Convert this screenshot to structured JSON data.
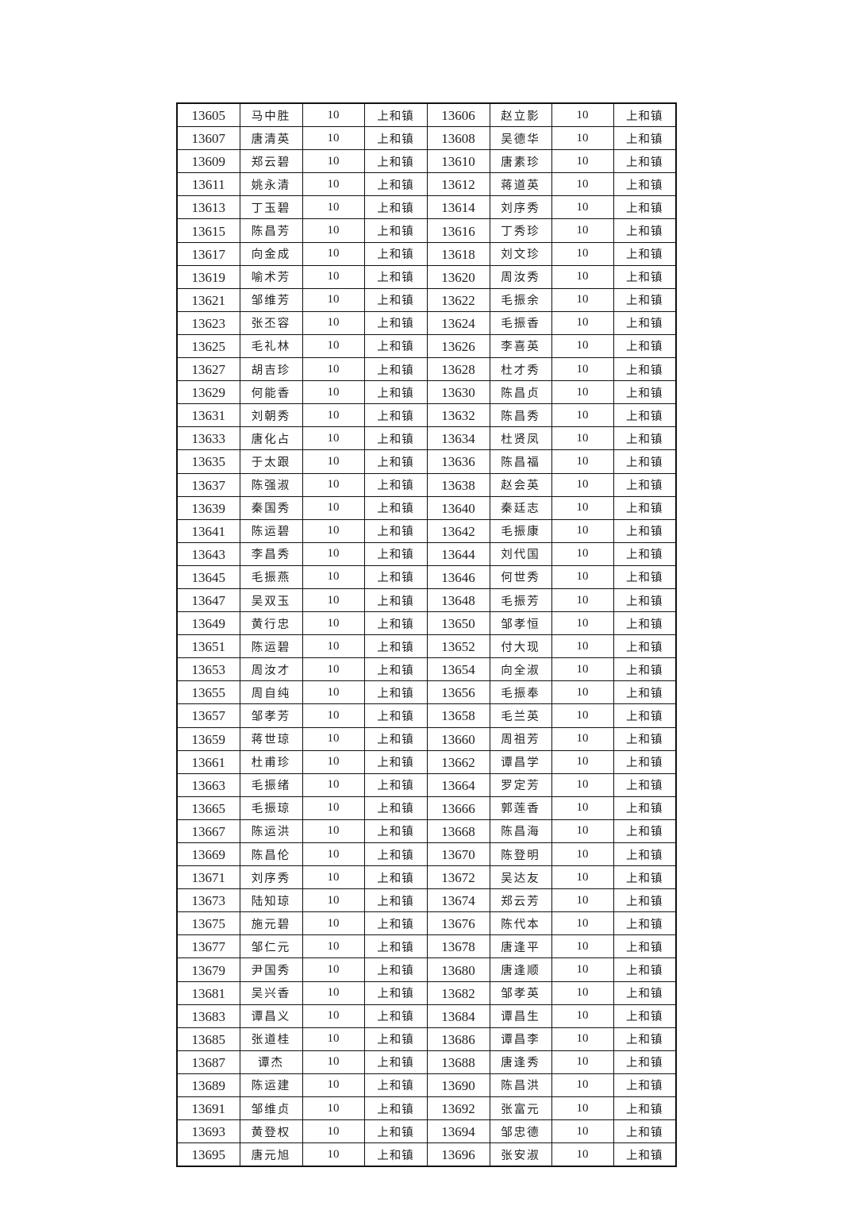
{
  "amount": "10",
  "town": "上和镇",
  "rows": [
    {
      "id1": "13605",
      "n1": "马中胜",
      "id2": "13606",
      "n2": "赵立影"
    },
    {
      "id1": "13607",
      "n1": "唐清英",
      "id2": "13608",
      "n2": "吴德华"
    },
    {
      "id1": "13609",
      "n1": "郑云碧",
      "id2": "13610",
      "n2": "唐素珍"
    },
    {
      "id1": "13611",
      "n1": "姚永清",
      "id2": "13612",
      "n2": "蒋道英"
    },
    {
      "id1": "13613",
      "n1": "丁玉碧",
      "id2": "13614",
      "n2": "刘序秀"
    },
    {
      "id1": "13615",
      "n1": "陈昌芳",
      "id2": "13616",
      "n2": "丁秀珍"
    },
    {
      "id1": "13617",
      "n1": "向金成",
      "id2": "13618",
      "n2": "刘文珍"
    },
    {
      "id1": "13619",
      "n1": "喻术芳",
      "id2": "13620",
      "n2": "周汝秀"
    },
    {
      "id1": "13621",
      "n1": "邹维芳",
      "id2": "13622",
      "n2": "毛振余"
    },
    {
      "id1": "13623",
      "n1": "张丕容",
      "id2": "13624",
      "n2": "毛振香"
    },
    {
      "id1": "13625",
      "n1": "毛礼林",
      "id2": "13626",
      "n2": "李喜英"
    },
    {
      "id1": "13627",
      "n1": "胡吉珍",
      "id2": "13628",
      "n2": "杜才秀"
    },
    {
      "id1": "13629",
      "n1": "何能香",
      "id2": "13630",
      "n2": "陈昌贞"
    },
    {
      "id1": "13631",
      "n1": "刘朝秀",
      "id2": "13632",
      "n2": "陈昌秀"
    },
    {
      "id1": "13633",
      "n1": "唐化占",
      "id2": "13634",
      "n2": "杜贤凤"
    },
    {
      "id1": "13635",
      "n1": "于太跟",
      "id2": "13636",
      "n2": "陈昌福"
    },
    {
      "id1": "13637",
      "n1": "陈强淑",
      "id2": "13638",
      "n2": "赵会英"
    },
    {
      "id1": "13639",
      "n1": "秦国秀",
      "id2": "13640",
      "n2": "秦廷志"
    },
    {
      "id1": "13641",
      "n1": "陈运碧",
      "id2": "13642",
      "n2": "毛振康"
    },
    {
      "id1": "13643",
      "n1": "李昌秀",
      "id2": "13644",
      "n2": "刘代国"
    },
    {
      "id1": "13645",
      "n1": "毛振燕",
      "id2": "13646",
      "n2": "何世秀"
    },
    {
      "id1": "13647",
      "n1": "吴双玉",
      "id2": "13648",
      "n2": "毛振芳"
    },
    {
      "id1": "13649",
      "n1": "黄行忠",
      "id2": "13650",
      "n2": "邹孝恒"
    },
    {
      "id1": "13651",
      "n1": "陈运碧",
      "id2": "13652",
      "n2": "付大现"
    },
    {
      "id1": "13653",
      "n1": "周汝才",
      "id2": "13654",
      "n2": "向全淑"
    },
    {
      "id1": "13655",
      "n1": "周自纯",
      "id2": "13656",
      "n2": "毛振奉"
    },
    {
      "id1": "13657",
      "n1": "邹孝芳",
      "id2": "13658",
      "n2": "毛兰英"
    },
    {
      "id1": "13659",
      "n1": "蒋世琼",
      "id2": "13660",
      "n2": "周祖芳"
    },
    {
      "id1": "13661",
      "n1": "杜甫珍",
      "id2": "13662",
      "n2": "谭昌学"
    },
    {
      "id1": "13663",
      "n1": "毛振绪",
      "id2": "13664",
      "n2": "罗定芳"
    },
    {
      "id1": "13665",
      "n1": "毛振琼",
      "id2": "13666",
      "n2": "郭莲香"
    },
    {
      "id1": "13667",
      "n1": "陈运洪",
      "id2": "13668",
      "n2": "陈昌海"
    },
    {
      "id1": "13669",
      "n1": "陈昌伦",
      "id2": "13670",
      "n2": "陈登明"
    },
    {
      "id1": "13671",
      "n1": "刘序秀",
      "id2": "13672",
      "n2": "吴达友"
    },
    {
      "id1": "13673",
      "n1": "陆知琼",
      "id2": "13674",
      "n2": "郑云芳"
    },
    {
      "id1": "13675",
      "n1": "施元碧",
      "id2": "13676",
      "n2": "陈代本"
    },
    {
      "id1": "13677",
      "n1": "邹仁元",
      "id2": "13678",
      "n2": "唐逢平"
    },
    {
      "id1": "13679",
      "n1": "尹国秀",
      "id2": "13680",
      "n2": "唐逢顺"
    },
    {
      "id1": "13681",
      "n1": "吴兴香",
      "id2": "13682",
      "n2": "邹孝英"
    },
    {
      "id1": "13683",
      "n1": "谭昌义",
      "id2": "13684",
      "n2": "谭昌生"
    },
    {
      "id1": "13685",
      "n1": "张道桂",
      "id2": "13686",
      "n2": "谭昌李"
    },
    {
      "id1": "13687",
      "n1": "谭杰",
      "id2": "13688",
      "n2": "唐逢秀"
    },
    {
      "id1": "13689",
      "n1": "陈运建",
      "id2": "13690",
      "n2": "陈昌洪"
    },
    {
      "id1": "13691",
      "n1": "邹维贞",
      "id2": "13692",
      "n2": "张富元"
    },
    {
      "id1": "13693",
      "n1": "黄登权",
      "id2": "13694",
      "n2": "邹忠德"
    },
    {
      "id1": "13695",
      "n1": "唐元旭",
      "id2": "13696",
      "n2": "张安淑"
    }
  ]
}
